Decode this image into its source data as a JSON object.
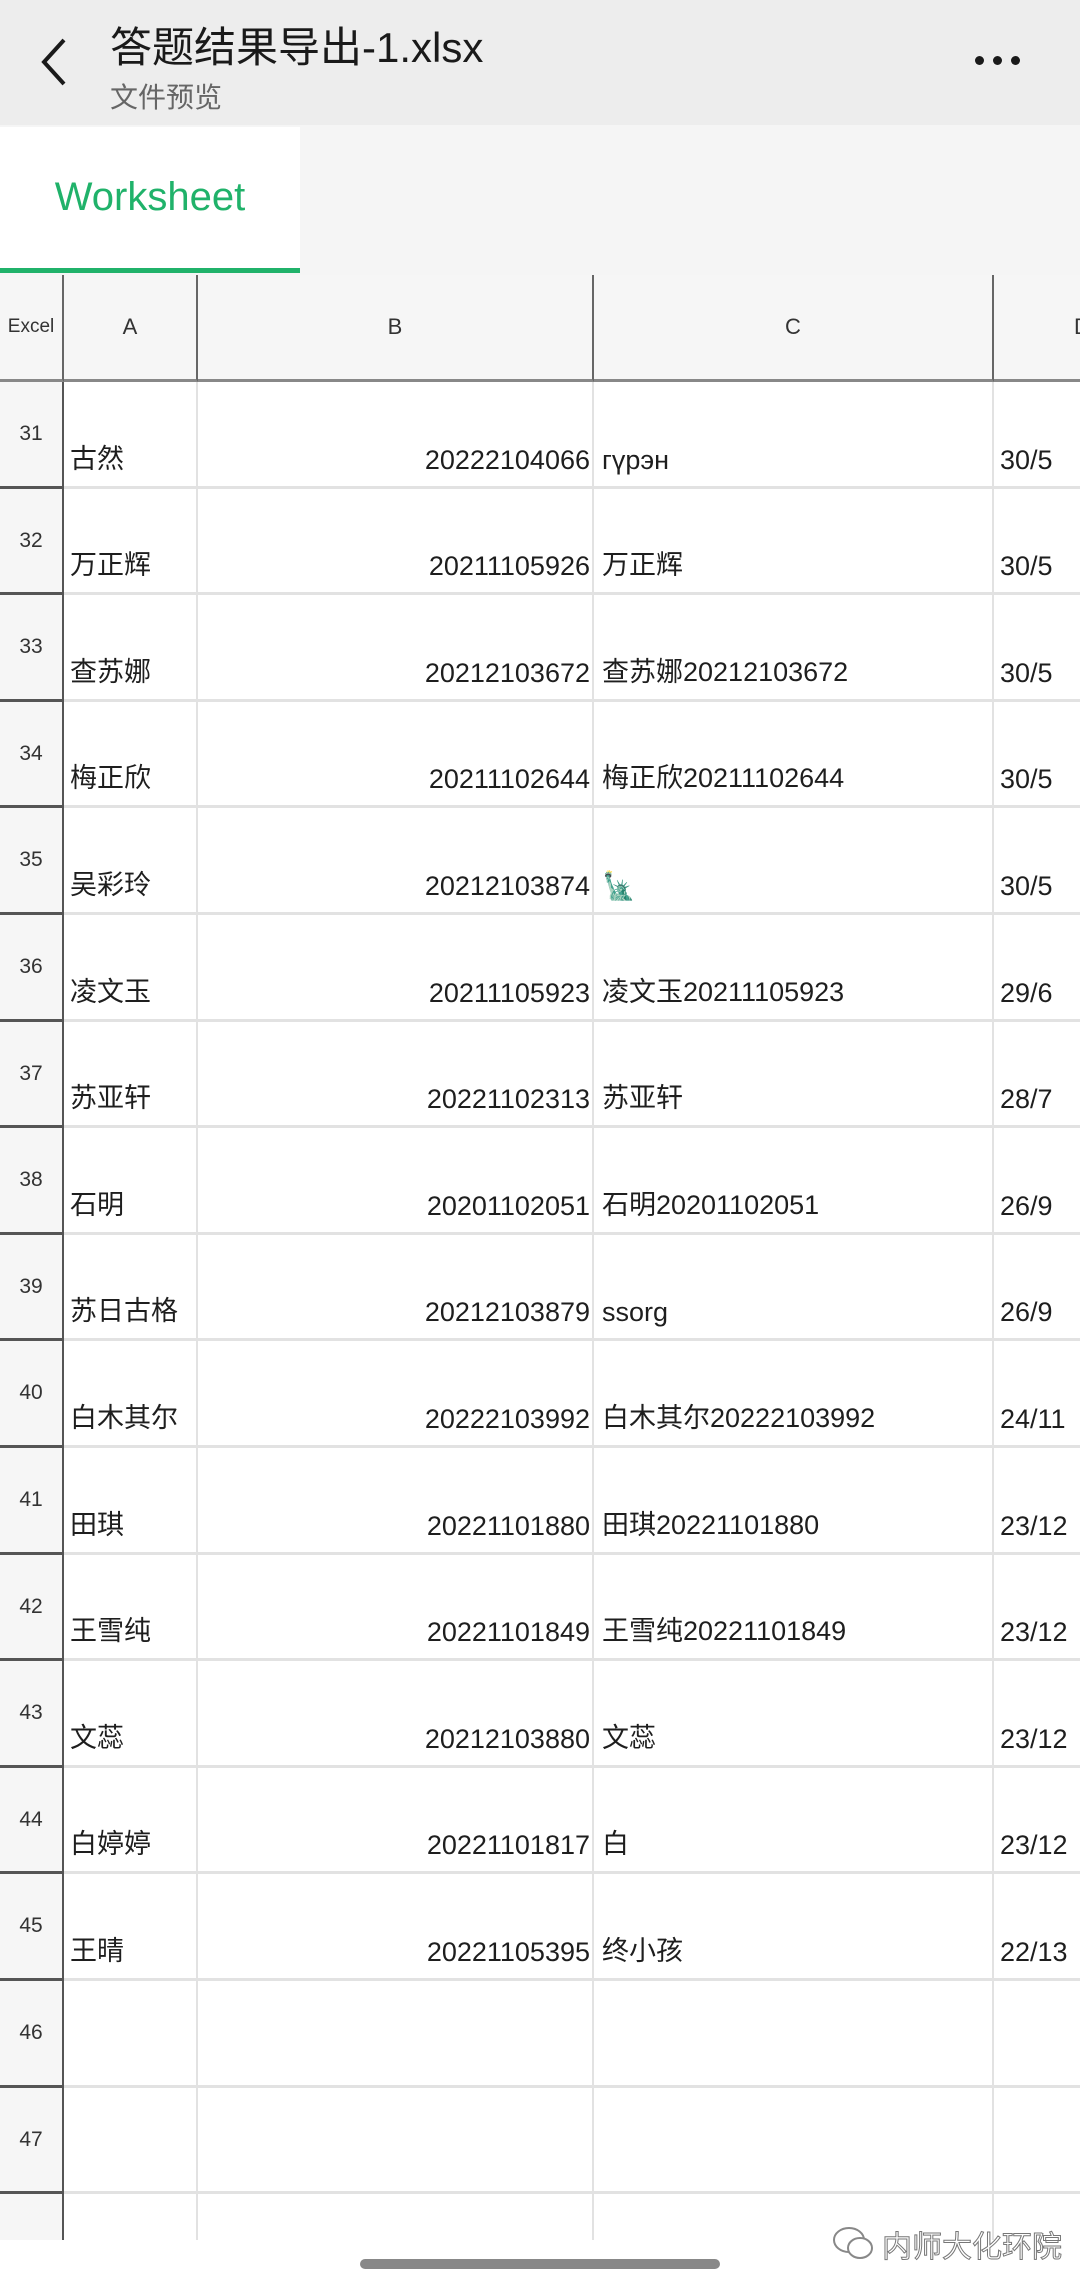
{
  "header": {
    "title": "答题结果导出-1.xlsx",
    "subtitle": "文件预览",
    "back_icon": "chevron-left-icon",
    "more_icon": "more-horizontal-icon"
  },
  "tabs": [
    {
      "label": "Worksheet",
      "active": true
    }
  ],
  "accent_color": "#20b26a",
  "columns": {
    "corner": "Excel",
    "headers": [
      "A",
      "B",
      "C",
      "D"
    ]
  },
  "rows": [
    {
      "num": "31",
      "a": "古然",
      "b": "20222104066",
      "c": "гүрэн",
      "d": "30/5"
    },
    {
      "num": "32",
      "a": "万正辉",
      "b": "20211105926",
      "c": "万正辉",
      "d": "30/5"
    },
    {
      "num": "33",
      "a": "查苏娜",
      "b": "20212103672",
      "c": "查苏娜20212103672",
      "d": "30/5"
    },
    {
      "num": "34",
      "a": "梅正欣",
      "b": "20211102644",
      "c": "梅正欣20211102644",
      "d": "30/5"
    },
    {
      "num": "35",
      "a": "吴彩玲",
      "b": "20212103874",
      "c": "🗽",
      "d": "30/5"
    },
    {
      "num": "36",
      "a": "凌文玉",
      "b": "20211105923",
      "c": "凌文玉20211105923",
      "d": "29/6"
    },
    {
      "num": "37",
      "a": "苏亚轩",
      "b": "20221102313",
      "c": "苏亚轩",
      "d": "28/7"
    },
    {
      "num": "38",
      "a": "石明",
      "b": "20201102051",
      "c": "石明20201102051",
      "d": "26/9"
    },
    {
      "num": "39",
      "a": "苏日古格",
      "b": "20212103879",
      "c": "ssorg",
      "d": "26/9"
    },
    {
      "num": "40",
      "a": "白木其尔",
      "b": "20222103992",
      "c": "白木其尔20222103992",
      "d": "24/11"
    },
    {
      "num": "41",
      "a": "田琪",
      "b": "20221101880",
      "c": "田琪20221101880",
      "d": "23/12"
    },
    {
      "num": "42",
      "a": "王雪纯",
      "b": "20221101849",
      "c": "王雪纯20221101849",
      "d": "23/12"
    },
    {
      "num": "43",
      "a": "文蕊",
      "b": "20212103880",
      "c": "文蕊",
      "d": "23/12"
    },
    {
      "num": "44",
      "a": "白婷婷",
      "b": "20221101817",
      "c": "白",
      "d": "23/12"
    },
    {
      "num": "45",
      "a": "王晴",
      "b": "20221105395",
      "c": "终小孩",
      "d": "22/13"
    },
    {
      "num": "46",
      "a": "",
      "b": "",
      "c": "",
      "d": ""
    },
    {
      "num": "47",
      "a": "",
      "b": "",
      "c": "",
      "d": ""
    },
    {
      "num": "",
      "a": "",
      "b": "",
      "c": "",
      "d": ""
    }
  ],
  "watermark": "内师大化环院"
}
